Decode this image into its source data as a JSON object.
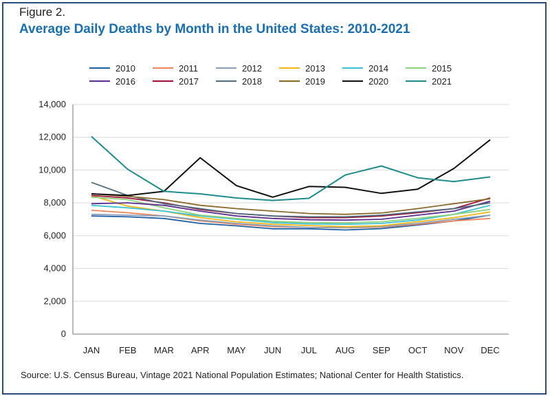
{
  "figure_label": "Figure 2.",
  "title": "Average Daily Deaths by Month in the United States: 2010-2021",
  "source": "Source: U.S. Census Bureau, Vintage 2021 National Population Estimates; National Center for Health Statistics.",
  "chart_data": {
    "type": "line",
    "title": "Average Daily Deaths by Month in the United States: 2010-2021",
    "xlabel": "",
    "ylabel": "",
    "ylim": [
      0,
      14000
    ],
    "yticks": [
      "0",
      "2,000",
      "4,000",
      "6,000",
      "8,000",
      "10,000",
      "12,000",
      "14,000"
    ],
    "ytick_values": [
      0,
      2000,
      4000,
      6000,
      8000,
      10000,
      12000,
      14000
    ],
    "grid": true,
    "legend_placement": "top",
    "categories": [
      "JAN",
      "FEB",
      "MAR",
      "APR",
      "MAY",
      "JUN",
      "JUL",
      "AUG",
      "SEP",
      "OCT",
      "NOV",
      "DEC"
    ],
    "series": [
      {
        "name": "2010",
        "color": "#1f5fa5",
        "values": [
          7200,
          7150,
          7050,
          6750,
          6600,
          6420,
          6420,
          6350,
          6430,
          6650,
          6900,
          7250
        ]
      },
      {
        "name": "2011",
        "color": "#f0845a",
        "values": [
          7550,
          7400,
          7200,
          6900,
          6700,
          6550,
          6500,
          6480,
          6520,
          6700,
          6900,
          7050
        ]
      },
      {
        "name": "2012",
        "color": "#8aa0b8",
        "values": [
          7300,
          7250,
          7200,
          6950,
          6750,
          6600,
          6500,
          6500,
          6550,
          6750,
          7000,
          7250
        ]
      },
      {
        "name": "2013",
        "color": "#f2b619",
        "values": [
          8450,
          7800,
          7500,
          7100,
          6850,
          6700,
          6620,
          6550,
          6600,
          6850,
          7100,
          7450
        ]
      },
      {
        "name": "2014",
        "color": "#3ec1d3",
        "values": [
          7850,
          7700,
          7500,
          7200,
          7000,
          6800,
          6720,
          6700,
          6750,
          6950,
          7300,
          7850
        ]
      },
      {
        "name": "2015",
        "color": "#8cd17d",
        "values": [
          8350,
          8200,
          7700,
          7250,
          7050,
          6880,
          6800,
          6780,
          6850,
          7050,
          7300,
          7600
        ]
      },
      {
        "name": "2016",
        "color": "#5b2d8e",
        "values": [
          7950,
          8000,
          7850,
          7500,
          7200,
          7050,
          6970,
          6950,
          7000,
          7250,
          7500,
          8100
        ]
      },
      {
        "name": "2017",
        "color": "#a0103a",
        "values": [
          8450,
          8300,
          8000,
          7600,
          7350,
          7200,
          7100,
          7100,
          7200,
          7400,
          7650,
          8300
        ]
      },
      {
        "name": "2018",
        "color": "#4f6b7e",
        "values": [
          9250,
          8450,
          7950,
          7650,
          7350,
          7200,
          7150,
          7150,
          7250,
          7450,
          7650,
          8000
        ]
      },
      {
        "name": "2019",
        "color": "#8a6a2a",
        "values": [
          8550,
          8400,
          8200,
          7850,
          7650,
          7500,
          7350,
          7300,
          7380,
          7650,
          7950,
          8250
        ]
      },
      {
        "name": "2020",
        "color": "#111111",
        "values": [
          8550,
          8450,
          8700,
          10750,
          9050,
          8350,
          9000,
          8950,
          8580,
          8830,
          10100,
          11850
        ]
      },
      {
        "name": "2021",
        "color": "#1e8c8c",
        "values": [
          12050,
          10050,
          8700,
          8550,
          8300,
          8150,
          8280,
          9700,
          10250,
          9530,
          9300,
          9580
        ]
      }
    ]
  }
}
